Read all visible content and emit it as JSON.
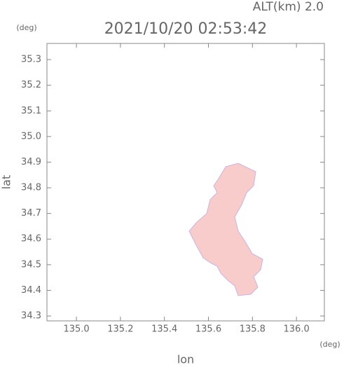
{
  "chart_data": {
    "type": "map",
    "title": "2021/10/20 02:53:42",
    "subtitle": "ALT(km) 2.0",
    "x_label": "lon",
    "y_label": "lat",
    "x_unit": "(deg)",
    "y_unit": "(deg)",
    "xlim": [
      134.866,
      136.127
    ],
    "ylim": [
      34.281,
      35.363
    ],
    "xticks": [
      {
        "value": 135,
        "label": "135.0"
      },
      135.2,
      135.4,
      135.6,
      135.8,
      {
        "value": 136,
        "label": "136.0"
      }
    ],
    "yticks": [
      34.3,
      34.4,
      34.5,
      34.6,
      34.7,
      34.8,
      34.9,
      {
        "value": 35,
        "label": "35.0"
      },
      35.1,
      35.2,
      35.3
    ],
    "color": "#f9cccc"
  }
}
